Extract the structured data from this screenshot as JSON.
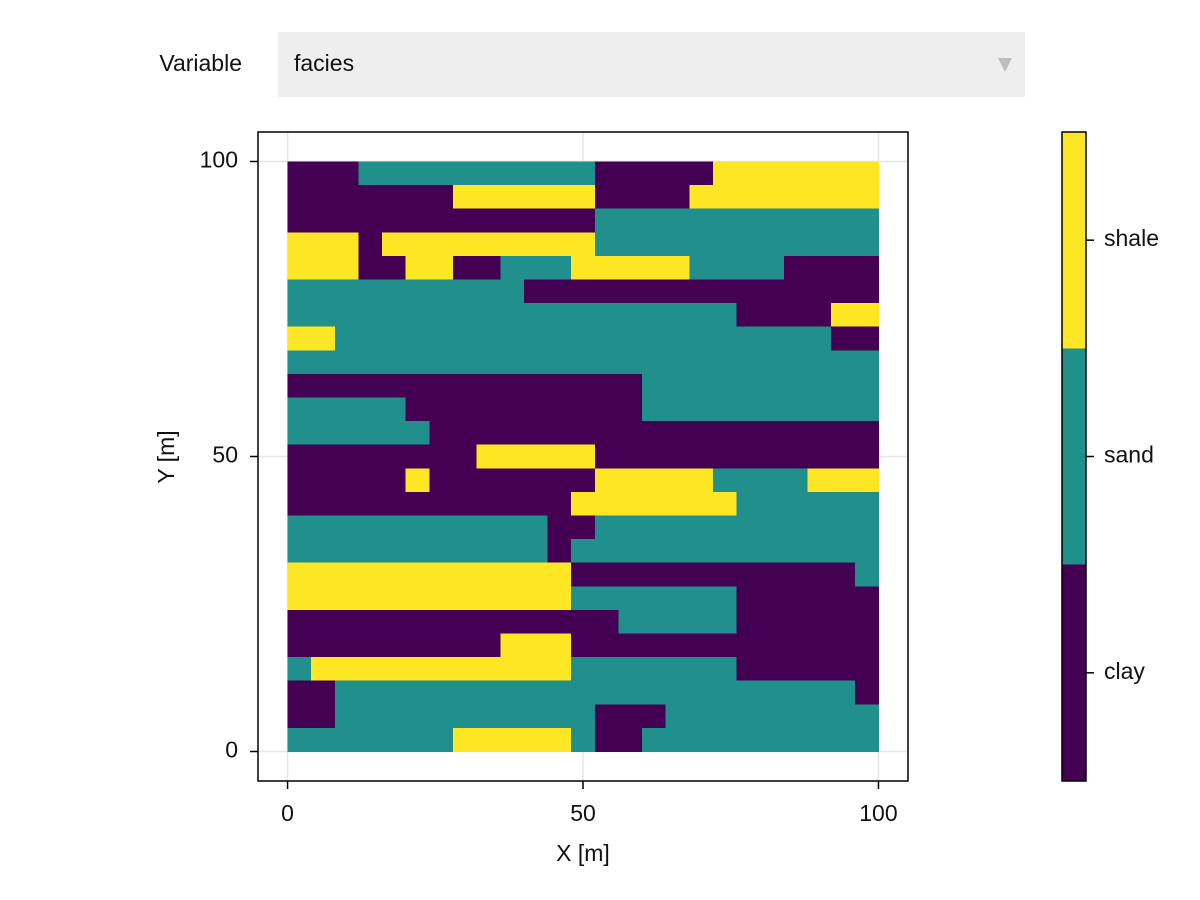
{
  "control": {
    "label": "Variable",
    "selected": "facies"
  },
  "chart_data": {
    "type": "heatmap",
    "xlabel": "X [m]",
    "ylabel": "Y [m]",
    "xlim": [
      -5,
      105
    ],
    "ylim": [
      -5,
      105
    ],
    "xticks": [
      0,
      50,
      100
    ],
    "yticks": [
      0,
      50,
      100
    ],
    "grid": true,
    "xrange": [
      0,
      100
    ],
    "yrange": [
      0,
      100
    ],
    "categories": [
      "clay",
      "sand",
      "shale"
    ],
    "colors": [
      "#440154",
      "#21908c",
      "#fde725"
    ],
    "z": [
      "0001111111111000002222222",
      "0000000222222000022222222",
      "0000000000000111111111111",
      "2220222222222111111111111",
      "2220022001112222211110000",
      "1111111111000000000000000",
      "1111111111111111111000022",
      "2211111111111111111111100",
      "1111111111111111111111111",
      "0000000000000001111111111",
      "1111100000000001111111111",
      "1111110000000000000000000",
      "0000000022222000000000000",
      "0000020000000222221111222",
      "0000000000002222222111111",
      "1111111111100111111111111",
      "1111111111101111111111111",
      "2222222222220000000000001",
      "2222222222221111111000000",
      "0000000000000011111000000",
      "0000000002220000000000000",
      "1222222222221111111000000",
      "0011111111111111111111110",
      "0011111111111000111111111",
      "1111111222221001111111111"
    ]
  }
}
